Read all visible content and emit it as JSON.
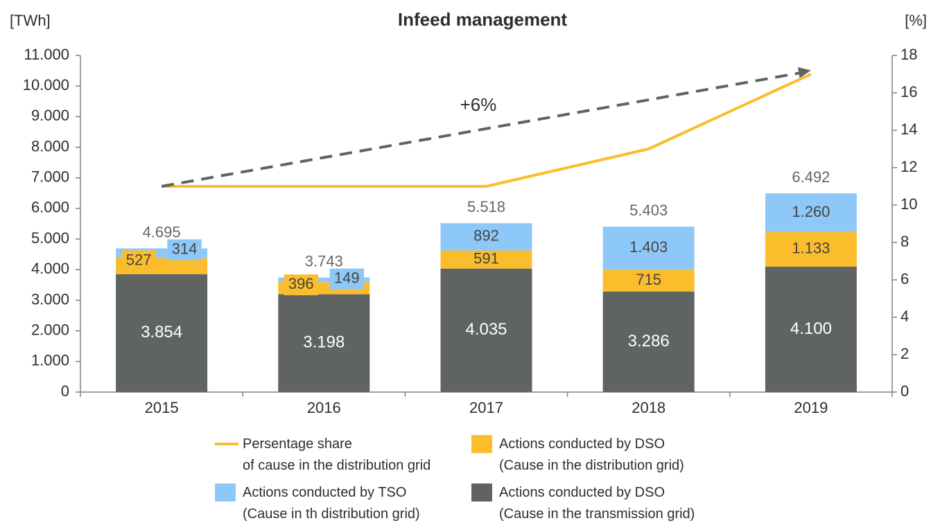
{
  "chart_data": {
    "type": "bar",
    "title": "Infeed management",
    "ylabel_left": "[TWh]",
    "ylabel_right": "[%]",
    "categories": [
      "2015",
      "2016",
      "2017",
      "2018",
      "2019"
    ],
    "ylim_left": [
      0,
      11000
    ],
    "yticks_left": [
      "0",
      "1.000",
      "2.000",
      "3.000",
      "4.000",
      "5.000",
      "6.000",
      "7.000",
      "8.000",
      "9.000",
      "10.000",
      "11.000"
    ],
    "ylim_right": [
      0,
      18
    ],
    "yticks_right": [
      "0",
      "2",
      "4",
      "6",
      "8",
      "10",
      "12",
      "14",
      "16",
      "18"
    ],
    "series": [
      {
        "name": "Actions conducted by DSO (Cause in the transmission grid)",
        "color": "#5f6462",
        "values": [
          3854,
          3198,
          4035,
          3286,
          4100
        ],
        "labels": [
          "3.854",
          "3.198",
          "4.035",
          "3.286",
          "4.100"
        ]
      },
      {
        "name": "Actions conducted by DSO (Cause in the distribution grid)",
        "color": "#fbbd2b",
        "values": [
          527,
          396,
          591,
          715,
          1133
        ],
        "labels": [
          "527",
          "396",
          "591",
          "715",
          "1.133"
        ]
      },
      {
        "name": "Actions conducted by TSO (Cause in th distribution grid)",
        "color": "#8ec8f8",
        "values": [
          314,
          149,
          892,
          1403,
          1260
        ],
        "labels": [
          "314",
          "149",
          "892",
          "1.403",
          "1.260"
        ]
      }
    ],
    "totals": [
      "4.695",
      "3.743",
      "5.518",
      "5.403",
      "6.492"
    ],
    "line_series": {
      "name": "Persentage share of cause in the distribution grid",
      "color": "#fbbd2b",
      "axis": "right",
      "values": [
        11,
        11,
        11,
        13,
        17
      ]
    },
    "trend_annotation": {
      "label": "+6%",
      "color": "#5f6462",
      "start_right_axis": 11,
      "end_right_axis": 17.2
    },
    "legend": [
      {
        "kind": "line",
        "color": "#fbbd2b",
        "line1": "Persentage share",
        "line2": "of cause in the distribution grid"
      },
      {
        "kind": "box",
        "color": "#fbbd2b",
        "line1": "Actions conducted by DSO",
        "line2": "(Cause in the distribution grid)"
      },
      {
        "kind": "box",
        "color": "#8ec8f8",
        "line1": "Actions conducted by TSO",
        "line2": "(Cause in th distribution grid)"
      },
      {
        "kind": "box",
        "color": "#5f6462",
        "line1": "Actions conducted by DSO",
        "line2": "(Cause in the transmission grid)"
      }
    ],
    "grid": false,
    "legend_position": "bottom"
  }
}
